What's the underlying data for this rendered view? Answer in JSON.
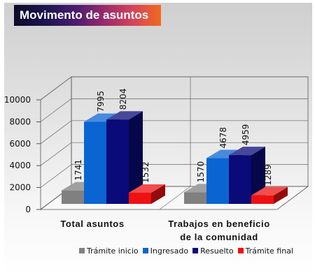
{
  "chart_data": {
    "type": "bar",
    "title": "Movimento de asuntos",
    "categories": [
      [
        "Total asuntos"
      ],
      [
        "Trabajos en beneficio",
        "de la comunidad"
      ]
    ],
    "series": [
      {
        "name": "Trámite inicio",
        "color": "#808080",
        "values": [
          1741,
          1570
        ]
      },
      {
        "name": "Ingresado",
        "color": "#0a64d2",
        "values": [
          7995,
          4678
        ]
      },
      {
        "name": "Resuelto",
        "color": "#0a0a78",
        "values": [
          8204,
          4959
        ]
      },
      {
        "name": "Trámite final",
        "color": "#ee1111",
        "values": [
          1532,
          1289
        ]
      }
    ],
    "y_ticks": [
      "0",
      "2000",
      "4000",
      "6000",
      "8000",
      "10000"
    ],
    "ylim": [
      0,
      10000
    ],
    "value_labels": [
      [
        "1741",
        "7995",
        "8204",
        "1532"
      ],
      [
        "1570",
        "4678",
        "4959",
        "1289"
      ]
    ],
    "grid": true,
    "legend_position": "bottom-right"
  }
}
